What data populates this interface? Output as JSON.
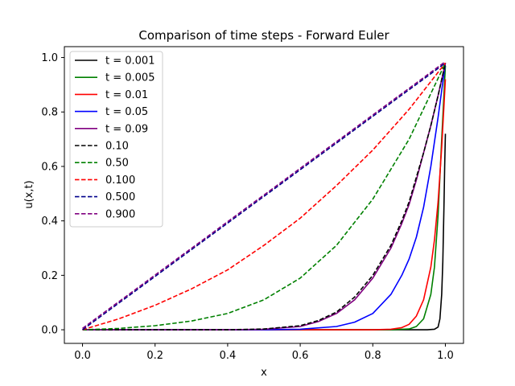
{
  "chart_data": {
    "type": "line",
    "title": "Comparison of time steps - Forward Euler",
    "xlabel": "x",
    "ylabel": "u(x,t)",
    "xlim": [
      -0.05,
      1.05
    ],
    "ylim": [
      -0.05,
      1.04
    ],
    "xticks": [
      "0.0",
      "0.2",
      "0.4",
      "0.6",
      "0.8",
      "1.0"
    ],
    "xtick_values": [
      0.0,
      0.2,
      0.4,
      0.6,
      0.8,
      1.0
    ],
    "yticks": [
      "0.0",
      "0.2",
      "0.4",
      "0.6",
      "0.8",
      "1.0"
    ],
    "ytick_values": [
      0.0,
      0.2,
      0.4,
      0.6,
      0.8,
      1.0
    ],
    "grid": false,
    "legend_position": "top-left",
    "series": [
      {
        "name": "t = 0.001",
        "color": "#000000",
        "style": "solid",
        "x": [
          0.0,
          0.5,
          0.9,
          0.95,
          0.97,
          0.98,
          0.985,
          0.99,
          0.993,
          0.996,
          0.998,
          1.0
        ],
        "y": [
          0.0,
          0.0,
          0.0,
          0.0,
          0.002,
          0.01,
          0.04,
          0.13,
          0.25,
          0.45,
          0.6,
          0.72
        ]
      },
      {
        "name": "t = 0.005",
        "color": "#008000",
        "style": "solid",
        "x": [
          0.0,
          0.6,
          0.85,
          0.9,
          0.92,
          0.94,
          0.96,
          0.97,
          0.98,
          0.99,
          1.0
        ],
        "y": [
          0.0,
          0.0,
          0.0,
          0.003,
          0.012,
          0.04,
          0.13,
          0.23,
          0.42,
          0.7,
          0.97
        ]
      },
      {
        "name": "t = 0.01",
        "color": "#ff0000",
        "style": "solid",
        "x": [
          0.0,
          0.6,
          0.8,
          0.85,
          0.88,
          0.9,
          0.92,
          0.94,
          0.96,
          0.97,
          0.98,
          0.99,
          1.0
        ],
        "y": [
          0.0,
          0.0,
          0.0,
          0.002,
          0.008,
          0.02,
          0.05,
          0.11,
          0.23,
          0.33,
          0.47,
          0.67,
          0.92
        ]
      },
      {
        "name": "t = 0.05",
        "color": "#0000ff",
        "style": "solid",
        "x": [
          0.0,
          0.5,
          0.6,
          0.7,
          0.75,
          0.8,
          0.85,
          0.88,
          0.9,
          0.92,
          0.94,
          0.96,
          0.98,
          1.0
        ],
        "y": [
          0.0,
          0.0,
          0.002,
          0.012,
          0.028,
          0.06,
          0.13,
          0.2,
          0.26,
          0.34,
          0.45,
          0.6,
          0.78,
          0.98
        ]
      },
      {
        "name": "t = 0.09",
        "color": "#800080",
        "style": "solid",
        "x": [
          0.0,
          0.4,
          0.5,
          0.6,
          0.65,
          0.7,
          0.75,
          0.8,
          0.85,
          0.88,
          0.9,
          0.92,
          0.94,
          0.96,
          0.98,
          1.0
        ],
        "y": [
          0.0,
          0.0,
          0.002,
          0.012,
          0.03,
          0.06,
          0.11,
          0.19,
          0.3,
          0.39,
          0.46,
          0.55,
          0.65,
          0.75,
          0.86,
          0.98
        ]
      },
      {
        "name": "0.10",
        "color": "#000000",
        "style": "dashed",
        "x": [
          0.0,
          0.4,
          0.5,
          0.6,
          0.65,
          0.7,
          0.75,
          0.8,
          0.85,
          0.88,
          0.9,
          0.92,
          0.94,
          0.96,
          0.98,
          1.0
        ],
        "y": [
          0.0,
          0.0,
          0.003,
          0.015,
          0.034,
          0.065,
          0.12,
          0.2,
          0.31,
          0.4,
          0.47,
          0.56,
          0.65,
          0.75,
          0.86,
          0.98
        ]
      },
      {
        "name": "0.50",
        "color": "#008000",
        "style": "dashed",
        "x": [
          0.0,
          0.1,
          0.2,
          0.3,
          0.4,
          0.5,
          0.6,
          0.7,
          0.8,
          0.9,
          1.0
        ],
        "y": [
          0.0,
          0.005,
          0.015,
          0.032,
          0.06,
          0.11,
          0.19,
          0.31,
          0.48,
          0.7,
          0.98
        ]
      },
      {
        "name": "0.100",
        "color": "#ff0000",
        "style": "dashed",
        "x": [
          0.0,
          0.1,
          0.2,
          0.3,
          0.4,
          0.5,
          0.6,
          0.7,
          0.8,
          0.9,
          1.0
        ],
        "y": [
          0.0,
          0.04,
          0.09,
          0.15,
          0.22,
          0.31,
          0.41,
          0.53,
          0.66,
          0.81,
          0.98
        ]
      },
      {
        "name": "0.500",
        "color": "#00008b",
        "style": "dashed",
        "x": [
          0.0,
          1.0
        ],
        "y": [
          0.0,
          0.98
        ]
      },
      {
        "name": "0.900",
        "color": "#800080",
        "style": "dashed",
        "x": [
          0.0,
          1.0
        ],
        "y": [
          0.005,
          0.985
        ]
      }
    ]
  }
}
